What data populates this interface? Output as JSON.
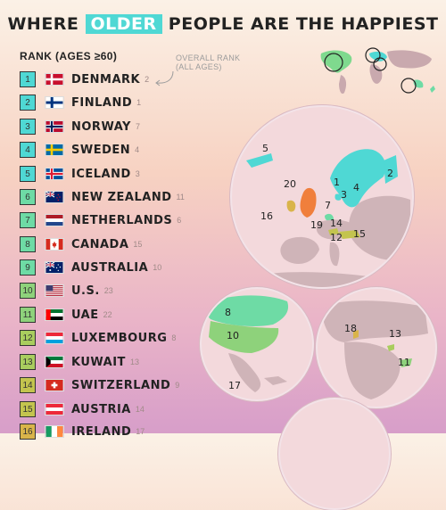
{
  "title": {
    "pre": "WHERE ",
    "highlight": "OLDER",
    "post": " PEOPLE ARE THE HAPPIEST"
  },
  "rank_header": "RANK (AGES ≥60)",
  "overall_header": {
    "line1": "OVERALL RANK",
    "line2": "(ALL AGES)"
  },
  "rows": [
    {
      "rank": "1",
      "country": "DENMARK",
      "overall": "2",
      "color": "#4fd8d4"
    },
    {
      "rank": "2",
      "country": "FINLAND",
      "overall": "1",
      "color": "#4fd8d4"
    },
    {
      "rank": "3",
      "country": "NORWAY",
      "overall": "7",
      "color": "#4fd8d4"
    },
    {
      "rank": "4",
      "country": "SWEDEN",
      "overall": "4",
      "color": "#4fd8d4"
    },
    {
      "rank": "5",
      "country": "ICELAND",
      "overall": "3",
      "color": "#4fd8d4"
    },
    {
      "rank": "6",
      "country": "NEW ZEALAND",
      "overall": "11",
      "color": "#6edba5"
    },
    {
      "rank": "7",
      "country": "NETHERLANDS",
      "overall": "6",
      "color": "#6edba5"
    },
    {
      "rank": "8",
      "country": "CANADA",
      "overall": "15",
      "color": "#6edba5"
    },
    {
      "rank": "9",
      "country": "AUSTRALIA",
      "overall": "10",
      "color": "#6edba5"
    },
    {
      "rank": "10",
      "country": "U.S.",
      "overall": "23",
      "color": "#8ed27b"
    },
    {
      "rank": "11",
      "country": "UAE",
      "overall": "22",
      "color": "#8ed27b"
    },
    {
      "rank": "12",
      "country": "LUXEMBOURG",
      "overall": "8",
      "color": "#a9cd5e"
    },
    {
      "rank": "13",
      "country": "KUWAIT",
      "overall": "13",
      "color": "#a9cd5e"
    },
    {
      "rank": "14",
      "country": "SWITZERLAND",
      "overall": "9",
      "color": "#c3c44e"
    },
    {
      "rank": "15",
      "country": "AUSTRIA",
      "overall": "14",
      "color": "#c3c44e"
    },
    {
      "rank": "16",
      "country": "IRELAND",
      "overall": "17",
      "color": "#d9b44a"
    }
  ],
  "europe_labels": [
    "5",
    "20",
    "1",
    "3",
    "4",
    "2",
    "7",
    "16",
    "14",
    "19",
    "12",
    "15"
  ],
  "americas_labels": [
    "8",
    "10",
    "17"
  ],
  "mideast_labels": [
    "18",
    "13",
    "11"
  ]
}
